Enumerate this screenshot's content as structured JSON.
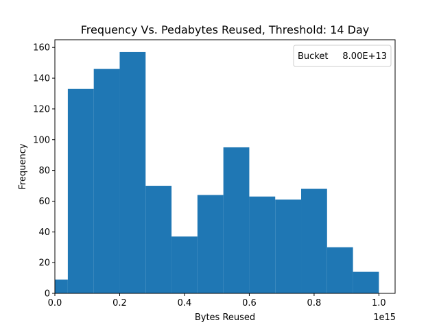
{
  "chart_data": {
    "type": "bar",
    "title": "Frequency Vs. Pedabytes Reused, Threshold: 14 Day",
    "xlabel": "Bytes Reused",
    "ylabel": "Frequency",
    "x_offset_label": "1e15",
    "xlim": [
      0,
      1.05
    ],
    "ylim": [
      0,
      165
    ],
    "x_ticks": [
      0.0,
      0.2,
      0.4,
      0.6,
      0.8,
      1.0
    ],
    "x_tick_labels": [
      "0.0",
      "0.2",
      "0.4",
      "0.6",
      "0.8",
      "1.0"
    ],
    "y_ticks": [
      0,
      20,
      40,
      60,
      80,
      100,
      120,
      140,
      160
    ],
    "y_tick_labels": [
      "0",
      "20",
      "40",
      "60",
      "80",
      "100",
      "120",
      "140",
      "160"
    ],
    "bin_edges": [
      0.0,
      0.04,
      0.12,
      0.2,
      0.28,
      0.36,
      0.44,
      0.52,
      0.6,
      0.68,
      0.76,
      0.84,
      0.92,
      1.0
    ],
    "values": [
      9,
      133,
      146,
      157,
      70,
      37,
      64,
      95,
      63,
      61,
      68,
      30,
      14
    ],
    "bar_color": "#1f77b4",
    "grid": false,
    "legend": {
      "placement": "top-right",
      "label": "Bucket",
      "value": "8.00E+13"
    }
  }
}
